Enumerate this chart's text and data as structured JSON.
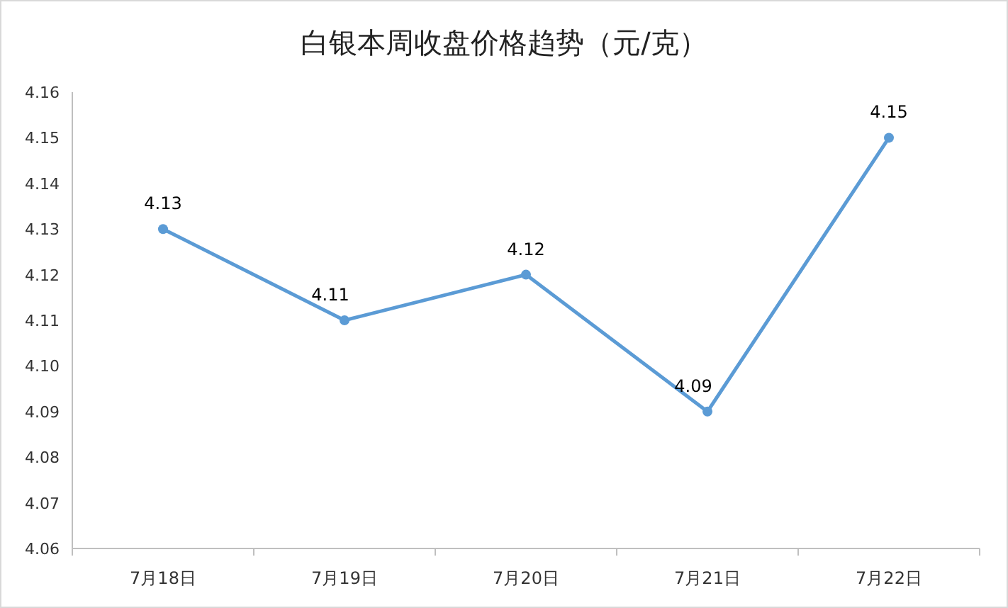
{
  "chart_data": {
    "type": "line",
    "title": "白银本周收盘价格趋势（元/克）",
    "categories": [
      "7月18日",
      "7月19日",
      "7月20日",
      "7月21日",
      "7月22日"
    ],
    "series": [
      {
        "color": "#5b9bd5",
        "values": [
          4.13,
          4.11,
          4.12,
          4.09,
          4.15
        ]
      }
    ],
    "ylim": [
      4.06,
      4.16
    ],
    "yticks": [
      "4.06",
      "4.07",
      "4.08",
      "4.09",
      "4.10",
      "4.11",
      "4.12",
      "4.13",
      "4.14",
      "4.15",
      "4.16"
    ],
    "data_labels": true,
    "marker": "circle",
    "grid": false
  }
}
